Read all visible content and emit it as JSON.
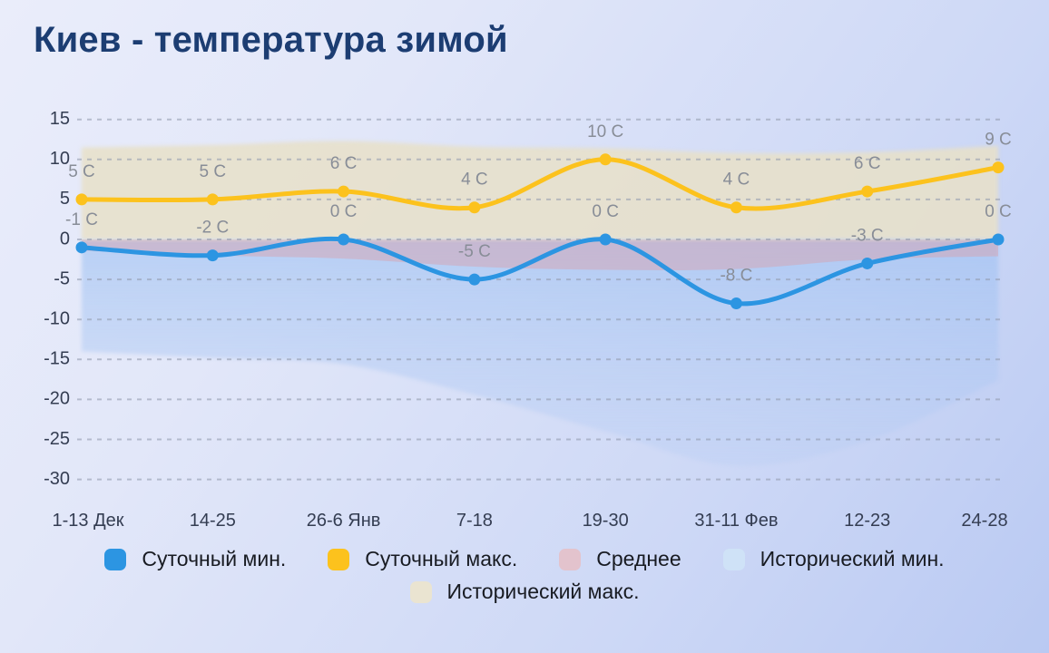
{
  "title": "Киев - температура зимой",
  "chart_data": {
    "type": "line",
    "title": "Киев - температура зимой",
    "unit": "C",
    "grid": true,
    "legend_position": "bottom",
    "categories": [
      "1-13 Дек",
      "14-25",
      "26-6 Янв",
      "7-18",
      "19-30",
      "31-11 Фев",
      "12-23",
      "24-28"
    ],
    "y_ticks": [
      15,
      10,
      5,
      0,
      -5,
      -10,
      -15,
      -20,
      -25,
      -30
    ],
    "ylim": [
      -32,
      16
    ],
    "series": [
      {
        "id": "historical-min",
        "name": "Исторический мин.",
        "type": "band",
        "color": "#9ec1f2",
        "upper": [
          0,
          0,
          0,
          0,
          0,
          0,
          0,
          0
        ],
        "lower": [
          -14,
          -14.8,
          -15.6,
          -19.4,
          -24,
          -28.3,
          -25.2,
          -17.6
        ]
      },
      {
        "id": "average",
        "name": "Среднее",
        "type": "band",
        "color": "#d6a4b2",
        "upper": [
          0,
          0,
          0,
          0,
          0,
          0,
          0,
          0
        ],
        "lower": [
          -1.4,
          -2,
          -2.4,
          -3.4,
          -3.8,
          -3.7,
          -2.5,
          -2.1
        ]
      },
      {
        "id": "historical-max",
        "name": "Исторический макс.",
        "type": "band",
        "color": "#e7e0c9",
        "upper": [
          11.5,
          11.8,
          12.3,
          11.6,
          11.4,
          10.8,
          10.9,
          11.7
        ],
        "lower": [
          0,
          0,
          0,
          0,
          0,
          0,
          0,
          0
        ]
      },
      {
        "id": "daily-min",
        "name": "Суточный мин.",
        "type": "line",
        "color": "#2c95e2",
        "values": [
          -1,
          -2,
          0,
          -5,
          0,
          -8,
          -3,
          0
        ],
        "labels": [
          "-1 C",
          "-2 C",
          "0 C",
          "-5 C",
          "0 C",
          "-8 C",
          "-3 C",
          "0 C"
        ]
      },
      {
        "id": "daily-max",
        "name": "Суточный макс.",
        "type": "line",
        "color": "#fcc21d",
        "values": [
          5,
          5,
          6,
          4,
          10,
          4,
          6,
          9
        ],
        "labels": [
          "5 C",
          "5 C",
          "6 C",
          "4 C",
          "10 C",
          "4 C",
          "6 C",
          "9 C"
        ]
      }
    ]
  },
  "legend": {
    "rows": [
      [
        {
          "id": "daily-min",
          "label": "Суточный мин.",
          "color": "#2c95e2"
        },
        {
          "id": "daily-max",
          "label": "Суточный макс.",
          "color": "#fcc21d"
        },
        {
          "id": "average",
          "label": "Среднее",
          "color": "#e3c3cd"
        },
        {
          "id": "historical-min",
          "label": "Исторический мин.",
          "color": "#cfe2f7"
        }
      ],
      [
        {
          "id": "historical-max",
          "label": "Исторический макс.",
          "color": "#eae4d1"
        }
      ]
    ]
  },
  "style": {
    "grid_color": "#959db0",
    "axis_label_color": "#343d52",
    "data_label_color": "#888d97",
    "title_color": "#1c3d72"
  }
}
